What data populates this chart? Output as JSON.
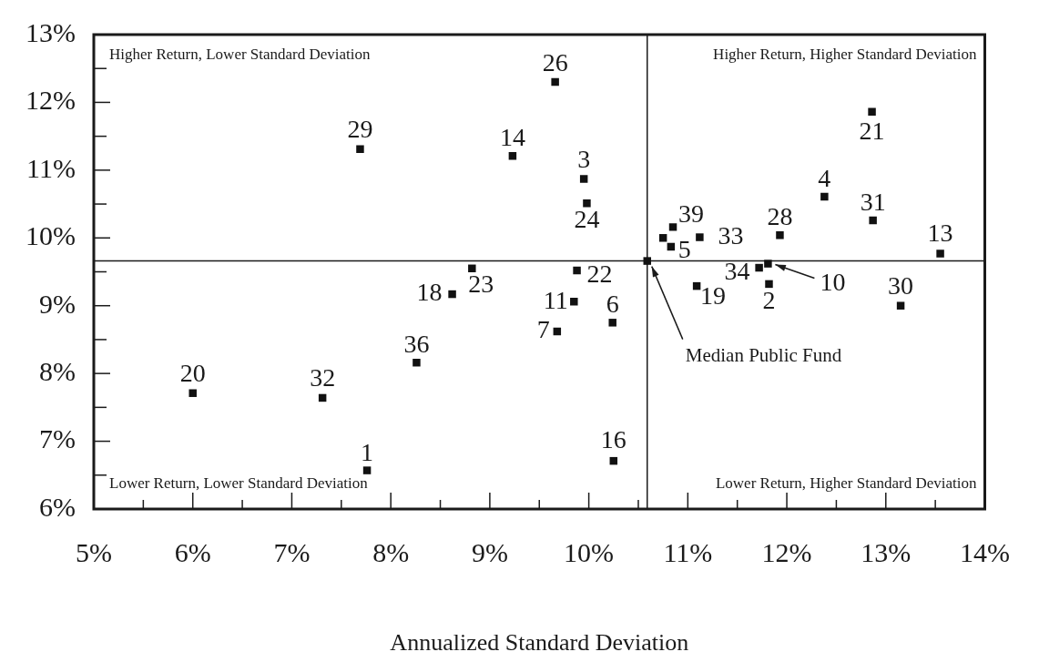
{
  "chart_data": {
    "type": "scatter",
    "xlabel": "Annualized Standard Deviation",
    "series": [
      {
        "color": "#111111",
        "x": [
          7.69,
          9.66,
          9.23,
          9.95,
          9.98,
          10.85,
          10.75,
          10.83,
          11.12,
          10.59,
          8.82,
          8.62,
          9.88,
          9.85,
          10.24,
          11.09,
          9.68,
          10.25,
          12.86,
          12.38,
          12.87,
          11.93,
          13.55,
          11.72,
          11.81,
          11.82,
          13.15,
          6.0,
          7.31,
          8.26,
          7.76
        ],
        "values": [
          11.31,
          12.3,
          11.21,
          10.87,
          10.51,
          10.16,
          10.0,
          9.87,
          10.01,
          9.66,
          9.55,
          9.17,
          9.52,
          9.06,
          8.75,
          9.29,
          8.62,
          6.71,
          11.86,
          10.61,
          10.26,
          10.04,
          9.77,
          9.56,
          9.62,
          9.32,
          9.0,
          7.71,
          7.64,
          8.16,
          6.57
        ]
      }
    ],
    "xlim": [
      5,
      14
    ],
    "xticks": [
      {
        "value": 5,
        "label": "5%"
      },
      {
        "value": 5.5,
        "label": null
      },
      {
        "value": 6,
        "label": "6%"
      },
      {
        "value": 6.5,
        "label": null
      },
      {
        "value": 7,
        "label": "7%"
      },
      {
        "value": 7.5,
        "label": null
      },
      {
        "value": 8,
        "label": "8%"
      },
      {
        "value": 8.5,
        "label": null
      },
      {
        "value": 9,
        "label": "9%"
      },
      {
        "value": 9.5,
        "label": null
      },
      {
        "value": 10,
        "label": "10%"
      },
      {
        "value": 10.5,
        "label": null
      },
      {
        "value": 11,
        "label": "11%"
      },
      {
        "value": 11.5,
        "label": null
      },
      {
        "value": 12,
        "label": "12%"
      },
      {
        "value": 12.5,
        "label": null
      },
      {
        "value": 13,
        "label": "13%"
      },
      {
        "value": 13.5,
        "label": null
      },
      {
        "value": 14,
        "label": "14%"
      }
    ],
    "ylim": [
      6,
      13
    ],
    "yticks": [
      {
        "value": 6,
        "label": "6%"
      },
      {
        "value": 6.5,
        "label": null
      },
      {
        "value": 7,
        "label": "7%"
      },
      {
        "value": 7.5,
        "label": null
      },
      {
        "value": 8,
        "label": "8%"
      },
      {
        "value": 8.5,
        "label": null
      },
      {
        "value": 9,
        "label": "9%"
      },
      {
        "value": 9.5,
        "label": null
      },
      {
        "value": 10,
        "label": "10%"
      },
      {
        "value": 10.5,
        "label": null
      },
      {
        "value": 11,
        "label": "11%"
      },
      {
        "value": 11.5,
        "label": null
      },
      {
        "value": 12,
        "label": "12%"
      },
      {
        "value": 12.5,
        "label": null
      },
      {
        "value": 13,
        "label": "13%"
      }
    ],
    "ref_lines": [
      {
        "axis": "x",
        "value": 10.59
      },
      {
        "axis": "y",
        "value": 9.66
      }
    ],
    "annotations": [
      "Higher Return, Lower Standard Deviation",
      "Higher Return, Higher Standard Deviation",
      "Lower Return, Lower Standard Deviation",
      "Lower Return, Higher Standard Deviation",
      {
        "text": "29",
        "x": 7.69,
        "y": 11.31
      },
      {
        "text": "26",
        "x": 9.66,
        "y": 12.3
      },
      {
        "text": "14",
        "x": 9.23,
        "y": 11.21
      },
      {
        "text": "3",
        "x": 9.95,
        "y": 10.87
      },
      {
        "text": "24",
        "x": 9.98,
        "y": 10.51
      },
      {
        "text": "39",
        "x": 10.85,
        "y": 10.16
      },
      {
        "text": "5",
        "x": 10.83,
        "y": 9.87
      },
      {
        "text": "33",
        "x": 11.12,
        "y": 10.01
      },
      {
        "text": "23",
        "x": 8.82,
        "y": 9.55
      },
      {
        "text": "18",
        "x": 8.62,
        "y": 9.17
      },
      {
        "text": "22",
        "x": 9.88,
        "y": 9.52
      },
      {
        "text": "11",
        "x": 9.85,
        "y": 9.06
      },
      {
        "text": "6",
        "x": 10.24,
        "y": 8.75
      },
      {
        "text": "19",
        "x": 11.09,
        "y": 9.29
      },
      {
        "text": "7",
        "x": 9.68,
        "y": 8.62
      },
      {
        "text": "16",
        "x": 10.25,
        "y": 6.71
      },
      {
        "text": "21",
        "x": 12.86,
        "y": 11.86
      },
      {
        "text": "4",
        "x": 12.38,
        "y": 10.61
      },
      {
        "text": "31",
        "x": 12.87,
        "y": 10.26
      },
      {
        "text": "28",
        "x": 11.93,
        "y": 10.04
      },
      {
        "text": "13",
        "x": 13.55,
        "y": 9.77
      },
      {
        "text": "34",
        "x": 11.72,
        "y": 9.56
      },
      {
        "text": "10",
        "x": 11.81,
        "y": 9.62
      },
      {
        "text": "2",
        "x": 11.82,
        "y": 9.32
      },
      {
        "text": "30",
        "x": 13.15,
        "y": 9.0
      },
      {
        "text": "20",
        "x": 6.0,
        "y": 7.71
      },
      {
        "text": "32",
        "x": 7.31,
        "y": 7.64
      },
      {
        "text": "36",
        "x": 8.26,
        "y": 8.16
      },
      {
        "text": "1",
        "x": 7.76,
        "y": 6.57
      },
      {
        "text": "Median Public Fund",
        "x": 10.59,
        "y": 9.66
      }
    ],
    "grid": false,
    "legend": false,
    "marker": "square"
  }
}
